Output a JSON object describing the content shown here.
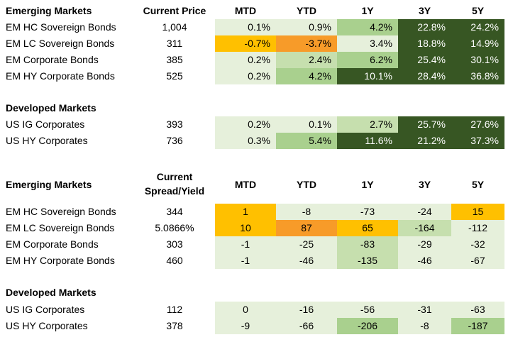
{
  "colors": {
    "very_light_green": "#e6f0db",
    "light_green": "#c6dfae",
    "medium_green": "#a9d08e",
    "dark_green": "#375623",
    "amber": "#ffc000",
    "orange": "#f79b29"
  },
  "price_table": {
    "headers": [
      "Current Price",
      "MTD",
      "YTD",
      "1Y",
      "3Y",
      "5Y"
    ],
    "sections": [
      {
        "title": "Emerging Markets",
        "rows": [
          {
            "name": "EM HC Sovereign Bonds",
            "value": "1,004",
            "cells": [
              "0.1%",
              "0.9%",
              "4.2%",
              "22.8%",
              "24.2%"
            ]
          },
          {
            "name": "EM LC Sovereign Bonds",
            "value": "311",
            "cells": [
              "-0.7%",
              "-3.7%",
              "3.4%",
              "18.8%",
              "14.9%"
            ]
          },
          {
            "name": "EM Corporate Bonds",
            "value": "385",
            "cells": [
              "0.2%",
              "2.4%",
              "6.2%",
              "25.4%",
              "30.1%"
            ]
          },
          {
            "name": "EM HY Corporate Bonds",
            "value": "525",
            "cells": [
              "0.2%",
              "4.2%",
              "10.1%",
              "28.4%",
              "36.8%"
            ]
          }
        ]
      },
      {
        "title": "Developed Markets",
        "rows": [
          {
            "name": "US IG Corporates",
            "value": "393",
            "cells": [
              "0.2%",
              "0.1%",
              "2.7%",
              "25.7%",
              "27.6%"
            ]
          },
          {
            "name": "US HY Corporates",
            "value": "736",
            "cells": [
              "0.3%",
              "5.4%",
              "11.6%",
              "21.2%",
              "37.3%"
            ]
          }
        ]
      }
    ]
  },
  "spread_table": {
    "headers": [
      "Current Spread/Yield",
      "MTD",
      "YTD",
      "1Y",
      "3Y",
      "5Y"
    ],
    "header_first_line": "Current",
    "header_second_line": "Spread/Yield",
    "sections": [
      {
        "title": "Emerging Markets",
        "rows": [
          {
            "name": "EM HC Sovereign Bonds",
            "value": "344",
            "cells": [
              "1",
              "-8",
              "-73",
              "-24",
              "15"
            ]
          },
          {
            "name": "EM LC Sovereign Bonds",
            "value": "5.0866%",
            "cells": [
              "10",
              "87",
              "65",
              "-164",
              "-112"
            ]
          },
          {
            "name": "EM Corporate Bonds",
            "value": "303",
            "cells": [
              "-1",
              "-25",
              "-83",
              "-29",
              "-32"
            ]
          },
          {
            "name": "EM HY Corporate Bonds",
            "value": "460",
            "cells": [
              "-1",
              "-46",
              "-135",
              "-46",
              "-67"
            ]
          }
        ]
      },
      {
        "title": "Developed Markets",
        "rows": [
          {
            "name": "US IG Corporates",
            "value": "112",
            "cells": [
              "0",
              "-16",
              "-56",
              "-31",
              "-63"
            ]
          },
          {
            "name": "US HY Corporates",
            "value": "378",
            "cells": [
              "-9",
              "-66",
              "-206",
              "-8",
              "-187"
            ]
          }
        ]
      }
    ]
  }
}
